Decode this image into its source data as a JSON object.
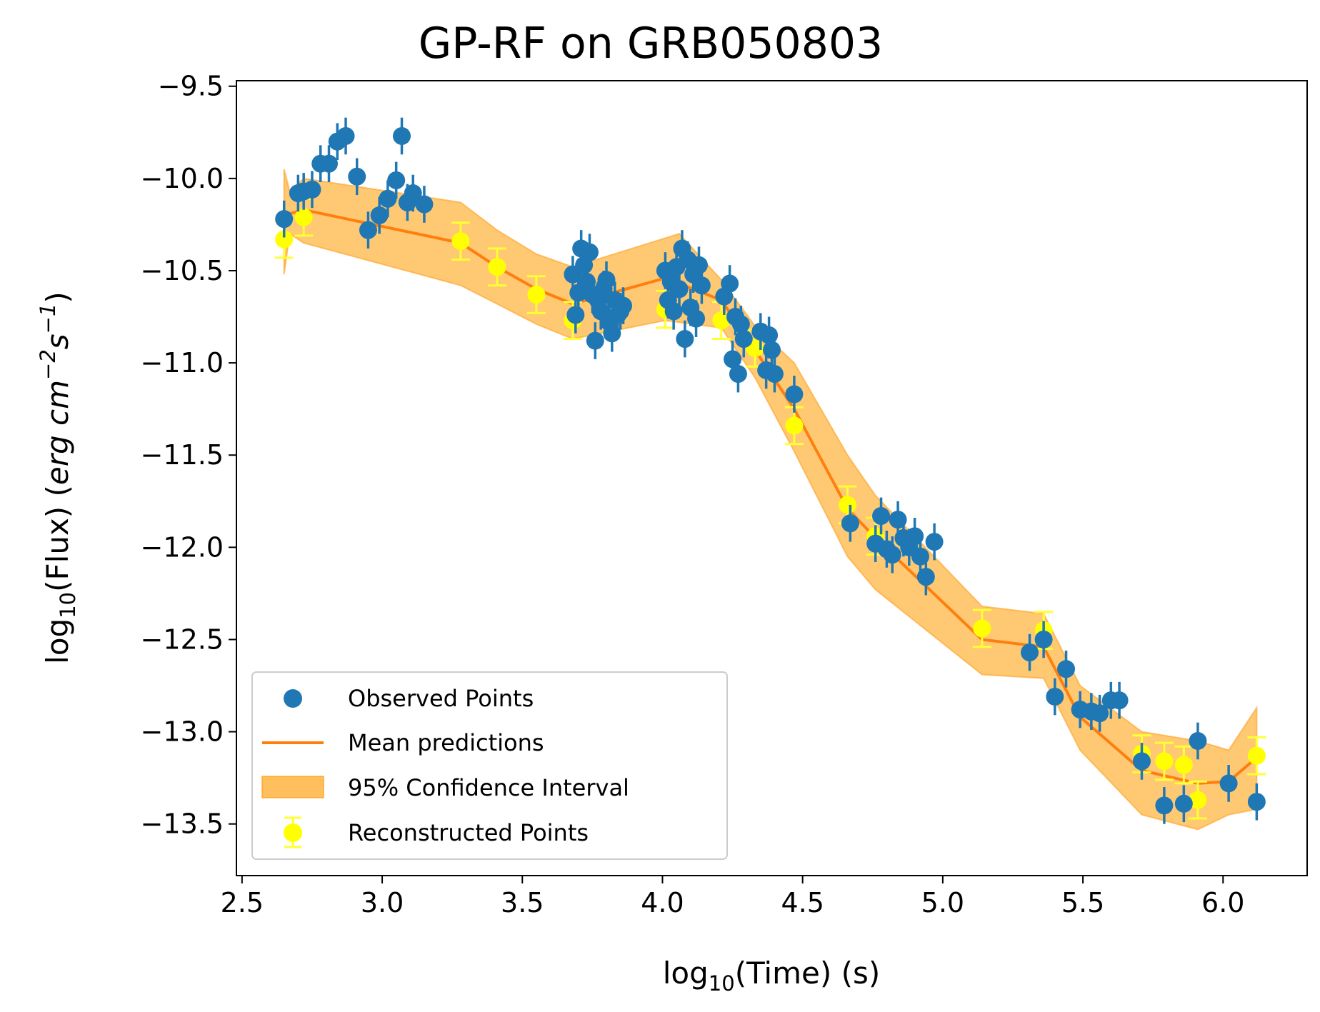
{
  "chart_data": {
    "type": "scatter",
    "title": "GP-RF on GRB050803",
    "xlabel": "log10(Time) (s)",
    "ylabel": "log10(Flux) (erg cm^-2 s^-1)",
    "xlabel_parts": {
      "pre": "log",
      "sub": "10",
      "post": "(Time) (s)"
    },
    "ylabel_parts": {
      "pre": "log",
      "sub": "10",
      "mid": "(Flux) (",
      "unit1": "erg cm",
      "sup1": "−2",
      "unit2": "s",
      "sup2": "−1",
      "post": ")"
    },
    "xlim": [
      2.48,
      6.3
    ],
    "ylim": [
      -13.78,
      -9.47
    ],
    "xticks": [
      2.5,
      3.0,
      3.5,
      4.0,
      4.5,
      5.0,
      5.5,
      6.0
    ],
    "xtick_labels": [
      "2.5",
      "3.0",
      "3.5",
      "4.0",
      "4.5",
      "5.0",
      "5.5",
      "6.0"
    ],
    "yticks": [
      -9.5,
      -10.0,
      -10.5,
      -11.0,
      -11.5,
      -12.0,
      -12.5,
      -13.0,
      -13.5
    ],
    "ytick_labels": [
      "−9.5",
      "−10.0",
      "−10.5",
      "−11.0",
      "−11.5",
      "−12.0",
      "−12.5",
      "−13.0",
      "−13.5"
    ],
    "legend": {
      "location": "lower-left",
      "entries": [
        "Observed Points",
        "Mean predictions",
        "95% Confidence Interval",
        "Reconstructed Points"
      ]
    },
    "colors": {
      "observed": "#1f77b4",
      "mean": "#ff7f0e",
      "band_fill": "#ffbf5c",
      "band_edge": "#ff9f1c",
      "reconstructed": "#ffff00",
      "reconstructed_err": "#ffff33"
    },
    "series": [
      {
        "name": "Observed Points",
        "error": 0.1,
        "points": [
          [
            2.65,
            -10.22
          ],
          [
            2.7,
            -10.08
          ],
          [
            2.72,
            -10.07
          ],
          [
            2.75,
            -10.06
          ],
          [
            2.78,
            -9.92
          ],
          [
            2.81,
            -9.92
          ],
          [
            2.84,
            -9.8
          ],
          [
            2.87,
            -9.77
          ],
          [
            2.91,
            -9.99
          ],
          [
            2.95,
            -10.28
          ],
          [
            2.99,
            -10.2
          ],
          [
            3.02,
            -10.11
          ],
          [
            3.05,
            -10.01
          ],
          [
            3.07,
            -9.77
          ],
          [
            3.09,
            -10.13
          ],
          [
            3.11,
            -10.08
          ],
          [
            3.15,
            -10.14
          ],
          [
            3.68,
            -10.52
          ],
          [
            3.69,
            -10.74
          ],
          [
            3.7,
            -10.62
          ],
          [
            3.71,
            -10.38
          ],
          [
            3.72,
            -10.47
          ],
          [
            3.73,
            -10.56
          ],
          [
            3.74,
            -10.4
          ],
          [
            3.75,
            -10.63
          ],
          [
            3.76,
            -10.88
          ],
          [
            3.77,
            -10.66
          ],
          [
            3.78,
            -10.72
          ],
          [
            3.79,
            -10.6
          ],
          [
            3.8,
            -10.55
          ],
          [
            3.81,
            -10.78
          ],
          [
            3.82,
            -10.84
          ],
          [
            3.83,
            -10.66
          ],
          [
            3.84,
            -10.74
          ],
          [
            3.85,
            -10.72
          ],
          [
            3.86,
            -10.69
          ],
          [
            4.01,
            -10.5
          ],
          [
            4.02,
            -10.66
          ],
          [
            4.03,
            -10.56
          ],
          [
            4.04,
            -10.72
          ],
          [
            4.05,
            -10.48
          ],
          [
            4.06,
            -10.6
          ],
          [
            4.07,
            -10.38
          ],
          [
            4.08,
            -10.87
          ],
          [
            4.09,
            -10.44
          ],
          [
            4.1,
            -10.7
          ],
          [
            4.11,
            -10.52
          ],
          [
            4.12,
            -10.76
          ],
          [
            4.13,
            -10.47
          ],
          [
            4.14,
            -10.58
          ],
          [
            4.22,
            -10.64
          ],
          [
            4.24,
            -10.57
          ],
          [
            4.25,
            -10.98
          ],
          [
            4.26,
            -10.75
          ],
          [
            4.27,
            -11.06
          ],
          [
            4.28,
            -10.79
          ],
          [
            4.29,
            -10.87
          ],
          [
            4.35,
            -10.83
          ],
          [
            4.37,
            -11.04
          ],
          [
            4.38,
            -10.85
          ],
          [
            4.39,
            -10.93
          ],
          [
            4.4,
            -11.06
          ],
          [
            4.47,
            -11.17
          ],
          [
            4.67,
            -11.87
          ],
          [
            4.76,
            -11.98
          ],
          [
            4.78,
            -11.83
          ],
          [
            4.8,
            -12.01
          ],
          [
            4.82,
            -12.04
          ],
          [
            4.84,
            -11.85
          ],
          [
            4.86,
            -11.95
          ],
          [
            4.88,
            -12.0
          ],
          [
            4.9,
            -11.94
          ],
          [
            4.92,
            -12.05
          ],
          [
            4.94,
            -12.16
          ],
          [
            4.97,
            -11.97
          ],
          [
            5.31,
            -12.57
          ],
          [
            5.36,
            -12.5
          ],
          [
            5.4,
            -12.81
          ],
          [
            5.44,
            -12.66
          ],
          [
            5.49,
            -12.88
          ],
          [
            5.53,
            -12.89
          ],
          [
            5.56,
            -12.9
          ],
          [
            5.6,
            -12.83
          ],
          [
            5.63,
            -12.83
          ],
          [
            5.71,
            -13.16
          ],
          [
            5.79,
            -13.4
          ],
          [
            5.86,
            -13.39
          ],
          [
            5.91,
            -13.05
          ],
          [
            6.02,
            -13.28
          ],
          [
            6.12,
            -13.38
          ]
        ]
      },
      {
        "name": "Reconstructed Points",
        "error": 0.1,
        "points": [
          [
            2.65,
            -10.33
          ],
          [
            2.72,
            -10.21
          ],
          [
            3.28,
            -10.34
          ],
          [
            3.41,
            -10.48
          ],
          [
            3.55,
            -10.63
          ],
          [
            3.68,
            -10.77
          ],
          [
            4.01,
            -10.71
          ],
          [
            4.21,
            -10.77
          ],
          [
            4.33,
            -10.92
          ],
          [
            4.47,
            -11.34
          ],
          [
            4.66,
            -11.77
          ],
          [
            4.76,
            -11.94
          ],
          [
            5.14,
            -12.44
          ],
          [
            5.36,
            -12.45
          ],
          [
            5.71,
            -13.12
          ],
          [
            5.79,
            -13.16
          ],
          [
            5.86,
            -13.18
          ],
          [
            5.91,
            -13.37
          ],
          [
            6.12,
            -13.13
          ]
        ]
      },
      {
        "name": "Mean predictions",
        "points": [
          [
            2.65,
            -10.2
          ],
          [
            2.72,
            -10.17
          ],
          [
            3.28,
            -10.35
          ],
          [
            3.41,
            -10.48
          ],
          [
            3.55,
            -10.6
          ],
          [
            3.68,
            -10.68
          ],
          [
            4.01,
            -10.54
          ],
          [
            4.21,
            -10.66
          ],
          [
            4.33,
            -10.93
          ],
          [
            4.47,
            -11.25
          ],
          [
            4.66,
            -11.79
          ],
          [
            4.76,
            -11.95
          ],
          [
            5.14,
            -12.5
          ],
          [
            5.36,
            -12.54
          ],
          [
            5.49,
            -12.92
          ],
          [
            5.71,
            -13.21
          ],
          [
            5.91,
            -13.28
          ],
          [
            6.02,
            -13.27
          ],
          [
            6.12,
            -13.14
          ]
        ]
      },
      {
        "name": "95% Confidence Interval",
        "points_upper": [
          [
            2.65,
            -9.95
          ],
          [
            2.67,
            -10.07
          ],
          [
            2.72,
            -10.0
          ],
          [
            3.28,
            -10.13
          ],
          [
            3.41,
            -10.28
          ],
          [
            3.55,
            -10.41
          ],
          [
            3.68,
            -10.48
          ],
          [
            4.06,
            -10.3
          ],
          [
            4.21,
            -10.55
          ],
          [
            4.33,
            -10.8
          ],
          [
            4.47,
            -11.0
          ],
          [
            4.66,
            -11.5
          ],
          [
            4.76,
            -11.72
          ],
          [
            5.14,
            -12.32
          ],
          [
            5.36,
            -12.36
          ],
          [
            5.49,
            -12.75
          ],
          [
            5.71,
            -13.0
          ],
          [
            5.91,
            -13.05
          ],
          [
            6.02,
            -13.1
          ],
          [
            6.12,
            -12.87
          ]
        ],
        "points_lower": [
          [
            6.12,
            -13.42
          ],
          [
            6.02,
            -13.45
          ],
          [
            5.91,
            -13.53
          ],
          [
            5.71,
            -13.45
          ],
          [
            5.49,
            -13.1
          ],
          [
            5.36,
            -12.71
          ],
          [
            5.14,
            -12.69
          ],
          [
            4.76,
            -12.23
          ],
          [
            4.66,
            -12.05
          ],
          [
            4.47,
            -11.48
          ],
          [
            4.33,
            -11.08
          ],
          [
            4.21,
            -10.81
          ],
          [
            4.01,
            -10.77
          ],
          [
            3.68,
            -10.87
          ],
          [
            3.55,
            -10.79
          ],
          [
            3.41,
            -10.68
          ],
          [
            3.28,
            -10.58
          ],
          [
            2.72,
            -10.35
          ],
          [
            2.67,
            -10.3
          ],
          [
            2.65,
            -10.52
          ]
        ]
      }
    ]
  }
}
